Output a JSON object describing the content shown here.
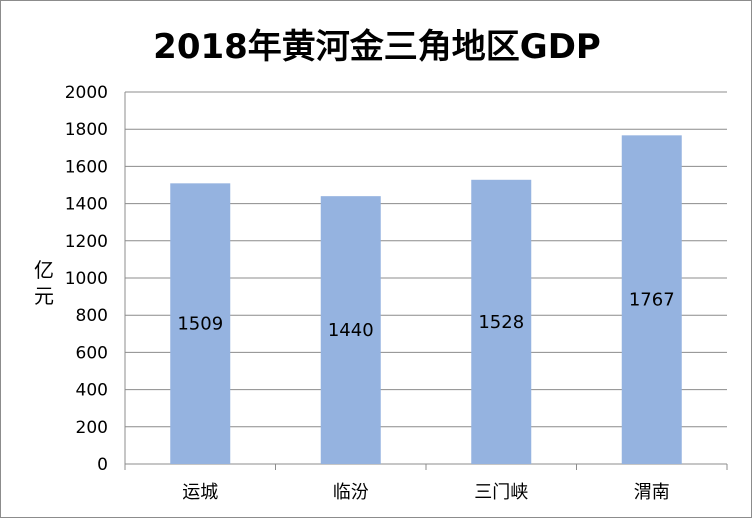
{
  "chart_data": {
    "type": "bar",
    "title": "2018年黄河金三角地区GDP",
    "xlabel": "",
    "ylabel": "亿元",
    "categories": [
      "运城",
      "临汾",
      "三门峡",
      "渭南"
    ],
    "values": [
      1509,
      1440,
      1528,
      1767
    ],
    "data_labels": [
      "1509",
      "1440",
      "1528",
      "1767"
    ],
    "ylim": [
      0,
      2000
    ],
    "yticks": [
      0,
      200,
      400,
      600,
      800,
      1000,
      1200,
      1400,
      1600,
      1800,
      2000
    ],
    "grid": true,
    "legend": "none",
    "bar_color": "#95b3e0",
    "grid_color": "#8c8c8c"
  }
}
